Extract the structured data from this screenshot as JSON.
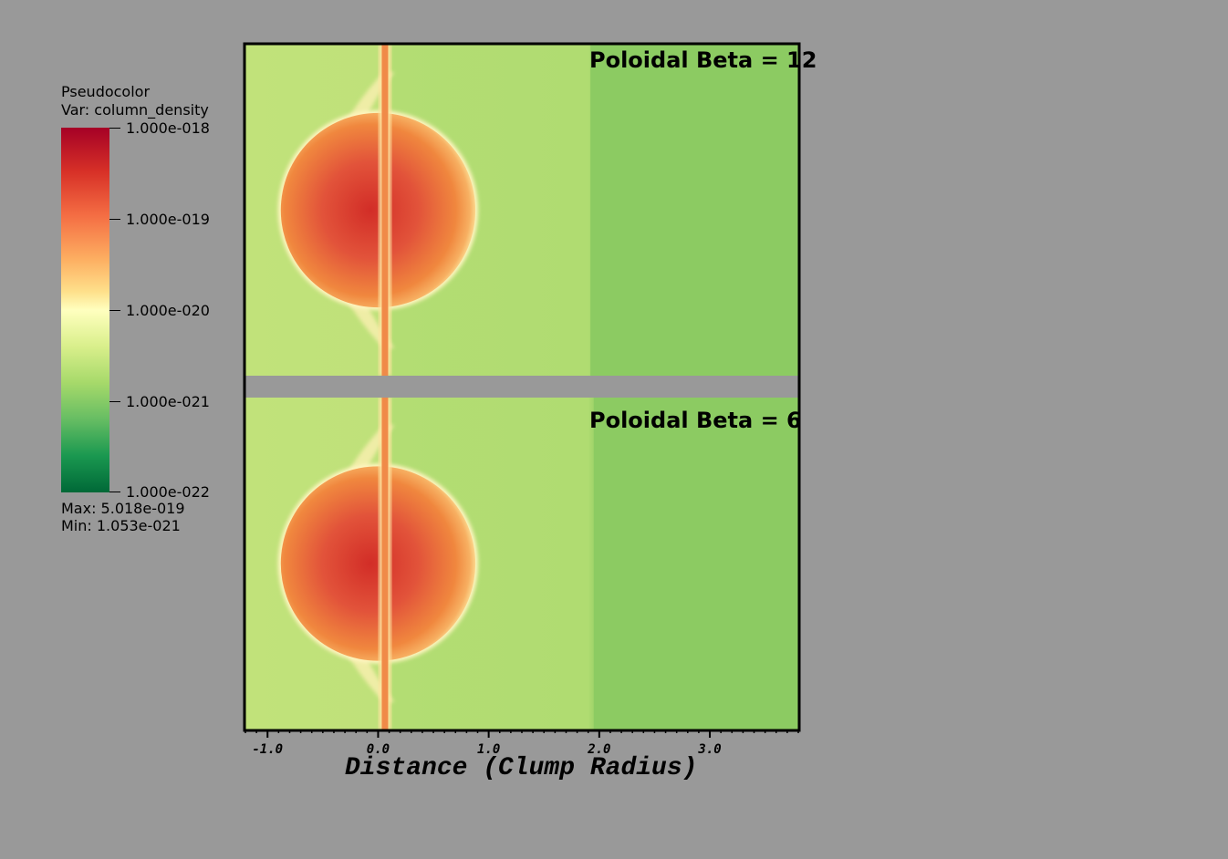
{
  "legend": {
    "title": "Pseudocolor",
    "var_label": "Var: column_density",
    "ticks": [
      "1.000e-018",
      "1.000e-019",
      "1.000e-020",
      "1.000e-021",
      "1.000e-022"
    ],
    "max_label": "Max:  5.018e-019",
    "min_label": "Min:  1.053e-021",
    "colormap": [
      "#a50026",
      "#d73027",
      "#f46d43",
      "#fdae61",
      "#fee08b",
      "#ffffbf",
      "#d9ef8b",
      "#a6d96a",
      "#66bd63",
      "#1a9850",
      "#006837"
    ]
  },
  "chart_data": {
    "type": "heatmap",
    "variable": "column_density",
    "log_scale": true,
    "color_range": [
      1e-22,
      1e-18
    ],
    "max": 5.018e-19,
    "min": 1.053e-21,
    "xlabel": "Distance (Clump Radius)",
    "x_ticks": [
      "-1.0",
      "0.0",
      "1.0",
      "2.0",
      "3.0"
    ],
    "x_tick_values": [
      -1.0,
      0.0,
      1.0,
      2.0,
      3.0
    ],
    "xlim": [
      -1.2,
      3.8
    ],
    "panels": [
      {
        "title": "Poloidal Beta = 12",
        "clump_center_x": 0.0,
        "clump_radius": 0.88,
        "front_x": 1.92
      },
      {
        "title": "Poloidal Beta =  6",
        "clump_center_x": 0.0,
        "clump_radius": 0.88,
        "front_x": 1.95
      }
    ],
    "colors": {
      "ambient_left": "#c1e27a",
      "ambient_mid": "#b3dd73",
      "ambient_right": "#8ccb62",
      "clump_core": "#d22d27",
      "clump_edge": "#f0873e",
      "rim": "#fff5c0",
      "background": "#999999"
    }
  }
}
